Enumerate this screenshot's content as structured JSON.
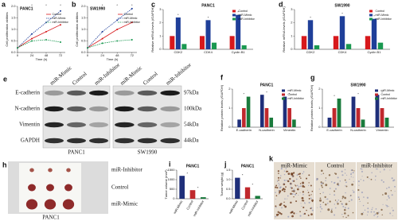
{
  "chart_data": [
    {
      "type": "line",
      "panel": "a",
      "title": "PANC1",
      "y_label": "Cell proliferation abilities",
      "x_label": "Time (h)",
      "x": [
        0,
        24,
        48,
        72
      ],
      "xlim": [
        0,
        80
      ],
      "xticks": [
        0,
        24,
        48,
        72
      ],
      "ylim": [
        0,
        2
      ],
      "yticks": [
        {
          "value": 0,
          "label": "0.0"
        },
        0.5,
        {
          "value": 1,
          "label": "1.0"
        },
        1.5,
        {
          "value": 2,
          "label": "2.0"
        }
      ],
      "sig_mark": "*",
      "series": [
        {
          "name": "Control",
          "color": "#d7191c",
          "dashed": false,
          "values": [
            0.2,
            0.6,
            0.9,
            1.2
          ]
        },
        {
          "name": "miR-Mimic",
          "color": "#1f3f99",
          "dashed": true,
          "values": [
            0.2,
            0.8,
            1.3,
            1.8
          ]
        },
        {
          "name": "miR-Inhibitor",
          "color": "#1a9850",
          "dashed": true,
          "values": [
            0.2,
            0.5,
            0.55,
            0.45
          ]
        }
      ]
    },
    {
      "type": "line",
      "panel": "b",
      "title": "SW1990",
      "y_label": "Cell proliferation abilities",
      "x_label": "Time (h)",
      "x": [
        0,
        24,
        48,
        72
      ],
      "xlim": [
        0,
        80
      ],
      "xticks": [
        0,
        24,
        48,
        72
      ],
      "ylim": [
        0,
        2
      ],
      "yticks": [
        {
          "value": 0,
          "label": "0.0"
        },
        0.5,
        {
          "value": 1,
          "label": "1.0"
        },
        1.5,
        {
          "value": 2,
          "label": "2.0"
        }
      ],
      "sig_mark": "*",
      "series": [
        {
          "name": "Control",
          "color": "#d7191c",
          "dashed": false,
          "values": [
            0.2,
            0.6,
            1.0,
            1.3
          ]
        },
        {
          "name": "miR-Mimic",
          "color": "#1f3f99",
          "dashed": true,
          "values": [
            0.2,
            0.9,
            1.4,
            1.9
          ]
        },
        {
          "name": "miR-Inhibitor",
          "color": "#1a9850",
          "dashed": true,
          "values": [
            0.2,
            0.4,
            0.5,
            0.55
          ]
        }
      ]
    },
    {
      "type": "bar",
      "panel": "c",
      "title": "PANC1",
      "y_label": "Relative mRNA levels (/GAPDH)",
      "categories": [
        "CDK2",
        "CDK4",
        "Cyclin B1"
      ],
      "ylim": [
        0,
        3
      ],
      "yticks": [
        0,
        1,
        2,
        3
      ],
      "sig_mark": "*",
      "series": [
        {
          "name": "Control",
          "color": "#d7191c",
          "values": [
            1,
            1,
            1
          ]
        },
        {
          "name": "miR-Mimic",
          "color": "#1f3f99",
          "values": [
            2.4,
            2.2,
            2.6
          ]
        },
        {
          "name": "miR-Inhibitor",
          "color": "#1a9850",
          "values": [
            0.4,
            0.5,
            0.3
          ]
        }
      ]
    },
    {
      "type": "bar",
      "panel": "d",
      "title": "SW1990",
      "y_label": "Relative mRNA levels (/GAPDH)",
      "categories": [
        "CDK2",
        "CDK4",
        "Cyclin B1"
      ],
      "ylim": [
        0,
        3
      ],
      "yticks": [
        0,
        1,
        2,
        3
      ],
      "sig_mark": "*",
      "series": [
        {
          "name": "Control",
          "color": "#d7191c",
          "values": [
            1,
            1,
            1
          ]
        },
        {
          "name": "miR-Mimic",
          "color": "#1f3f99",
          "values": [
            2.2,
            2.5,
            2.3
          ]
        },
        {
          "name": "miR-Inhibitor",
          "color": "#1a9850",
          "values": [
            0.3,
            0.4,
            0.5
          ]
        }
      ]
    },
    {
      "type": "bar",
      "panel": "f",
      "title": "PANC1",
      "y_label": "Relative protein levels (/GAPDH)",
      "categories": [
        "E-cadherin",
        "N-cadherin",
        "Vimentin"
      ],
      "ylim": [
        0,
        2
      ],
      "yticks": [
        0,
        1,
        2
      ],
      "sig_mark": "*",
      "series": [
        {
          "name": "miR-Mimic",
          "color": "#1f2f7a",
          "values": [
            0.4,
            1.7,
            1.6
          ]
        },
        {
          "name": "Control",
          "color": "#c0282d",
          "values": [
            1,
            1,
            1
          ]
        },
        {
          "name": "miR-Inhibitor",
          "color": "#1a7a3c",
          "values": [
            1.6,
            0.5,
            0.4
          ]
        }
      ]
    },
    {
      "type": "bar",
      "panel": "g",
      "title": "SW1990",
      "y_label": "Relative protein levels (/GAPDH)",
      "categories": [
        "E-cadherin",
        "N-cadherin",
        "Vimentin"
      ],
      "ylim": [
        0,
        2
      ],
      "yticks": [
        0,
        1,
        2
      ],
      "sig_mark": "*",
      "series": [
        {
          "name": "miR-Mimic",
          "color": "#1f2f7a",
          "values": [
            0.5,
            1.6,
            1.7
          ]
        },
        {
          "name": "Control",
          "color": "#c0282d",
          "values": [
            1,
            1,
            1
          ]
        },
        {
          "name": "miR-Inhibitor",
          "color": "#1a7a3c",
          "values": [
            1.5,
            0.4,
            0.5
          ]
        }
      ]
    },
    {
      "type": "bar",
      "panel": "i",
      "title": "PANC1",
      "y_label": "Tumor volume (mm³)",
      "categories": [
        "miR-Mimic",
        "Control",
        "miR-Inhibitor"
      ],
      "values": [
        1200,
        450,
        80
      ],
      "colors": [
        "#1f2f7a",
        "#c0282d",
        "#1a7a3c"
      ],
      "ylim": [
        0,
        1500
      ],
      "yticks": [
        0,
        500,
        1000,
        1500
      ],
      "sig_mark": "*"
    },
    {
      "type": "bar",
      "panel": "j",
      "title": "PANC1",
      "y_label": "Tumor weight (g)",
      "categories": [
        "miR-Mimic",
        "Control",
        "miR-Inhibitor"
      ],
      "values": [
        1.1,
        0.6,
        0.15
      ],
      "colors": [
        "#1f2f7a",
        "#c0282d",
        "#1a7a3c"
      ],
      "ylim": [
        0,
        1.5
      ],
      "yticks": [
        {
          "value": 0,
          "label": "0.0"
        },
        0.5,
        {
          "value": 1,
          "label": "1.0"
        },
        1.5
      ],
      "sig_mark": "*"
    }
  ],
  "blot": {
    "panel": "e",
    "columns": [
      "miR-Mimic",
      "Control",
      "miR-Inhibitor"
    ],
    "rows": [
      "E-cadherin",
      "N-cadherin",
      "Vimentin",
      "GAPDH"
    ],
    "sizes": [
      "97kDa",
      "100kDa",
      "54kDa",
      "44kDa"
    ],
    "cell_lines": [
      "PANC1",
      "SW1990"
    ]
  },
  "xenograft": {
    "panel": "h",
    "rows": [
      "miR-Inhibitor",
      "Control",
      "miR-Mimic"
    ],
    "cell_line": "PANC1"
  },
  "ihc": {
    "panel": "k",
    "columns": [
      "miR-Mimic",
      "Control",
      "miR-Inhibitor"
    ]
  }
}
